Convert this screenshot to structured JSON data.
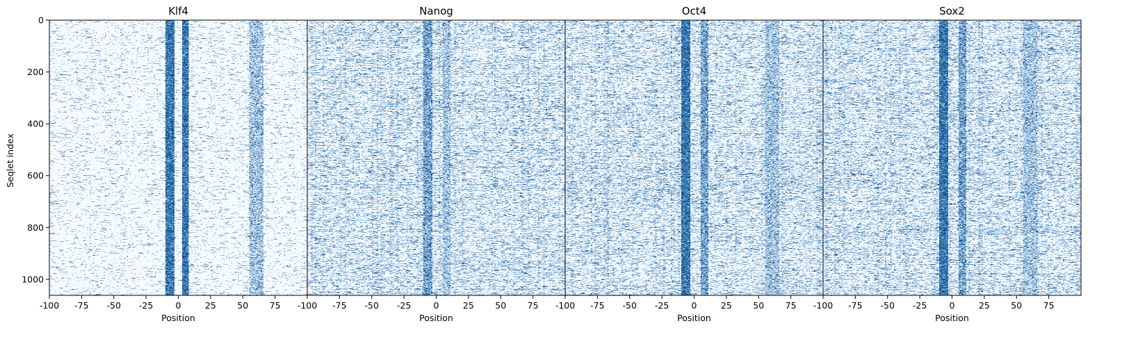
{
  "chart_data": {
    "type": "heatmap",
    "colormap": "Blues",
    "ylabel": "Seqlet index",
    "xlabel": "Position",
    "ylim": [
      1062,
      0
    ],
    "xlim": [
      -100,
      100
    ],
    "yticks": [
      0,
      200,
      400,
      600,
      800,
      1000
    ],
    "ytick_labels": [
      "0",
      "200",
      "400",
      "600",
      "800",
      "1000"
    ],
    "rows": 1062,
    "panels": [
      {
        "title": "Klf4",
        "xticks": [
          -100,
          -75,
          -50,
          -25,
          0,
          25,
          50,
          75
        ],
        "xtick_labels": [
          "-100",
          "-75",
          "-50",
          "-25",
          "0",
          "25",
          "50",
          "75"
        ],
        "background_density": "low",
        "motif_columns": [
          {
            "from": -10,
            "to": -4,
            "intensity": "high"
          },
          {
            "from": 3,
            "to": 7,
            "intensity": "high"
          },
          {
            "from": 55,
            "to": 65,
            "intensity": "low"
          }
        ]
      },
      {
        "title": "Nanog",
        "xticks": [
          -100,
          -75,
          -50,
          -25,
          0,
          25,
          50,
          75
        ],
        "xtick_labels": [
          "-100",
          "-75",
          "-50",
          "-25",
          "0",
          "25",
          "50",
          "75"
        ],
        "background_density": "high",
        "motif_columns": [
          {
            "from": -10,
            "to": -4,
            "intensity": "medium"
          },
          {
            "from": 5,
            "to": 10,
            "intensity": "low"
          }
        ]
      },
      {
        "title": "Oct4",
        "xticks": [
          -100,
          -75,
          -50,
          -25,
          0,
          25,
          50,
          75
        ],
        "xtick_labels": [
          "-100",
          "-75",
          "-50",
          "-25",
          "0",
          "25",
          "50",
          "75"
        ],
        "background_density": "high",
        "motif_columns": [
          {
            "from": -10,
            "to": -4,
            "intensity": "high"
          },
          {
            "from": 5,
            "to": 10,
            "intensity": "medium"
          },
          {
            "from": 55,
            "to": 65,
            "intensity": "low"
          }
        ]
      },
      {
        "title": "Sox2",
        "xticks": [
          -100,
          -75,
          -50,
          -25,
          0,
          25,
          50,
          75
        ],
        "xtick_labels": [
          "-100",
          "-75",
          "-50",
          "-25",
          "0",
          "25",
          "50",
          "75"
        ],
        "background_density": "high",
        "motif_columns": [
          {
            "from": -10,
            "to": -4,
            "intensity": "high"
          },
          {
            "from": 5,
            "to": 10,
            "intensity": "medium"
          },
          {
            "from": 55,
            "to": 65,
            "intensity": "low"
          }
        ]
      }
    ]
  }
}
